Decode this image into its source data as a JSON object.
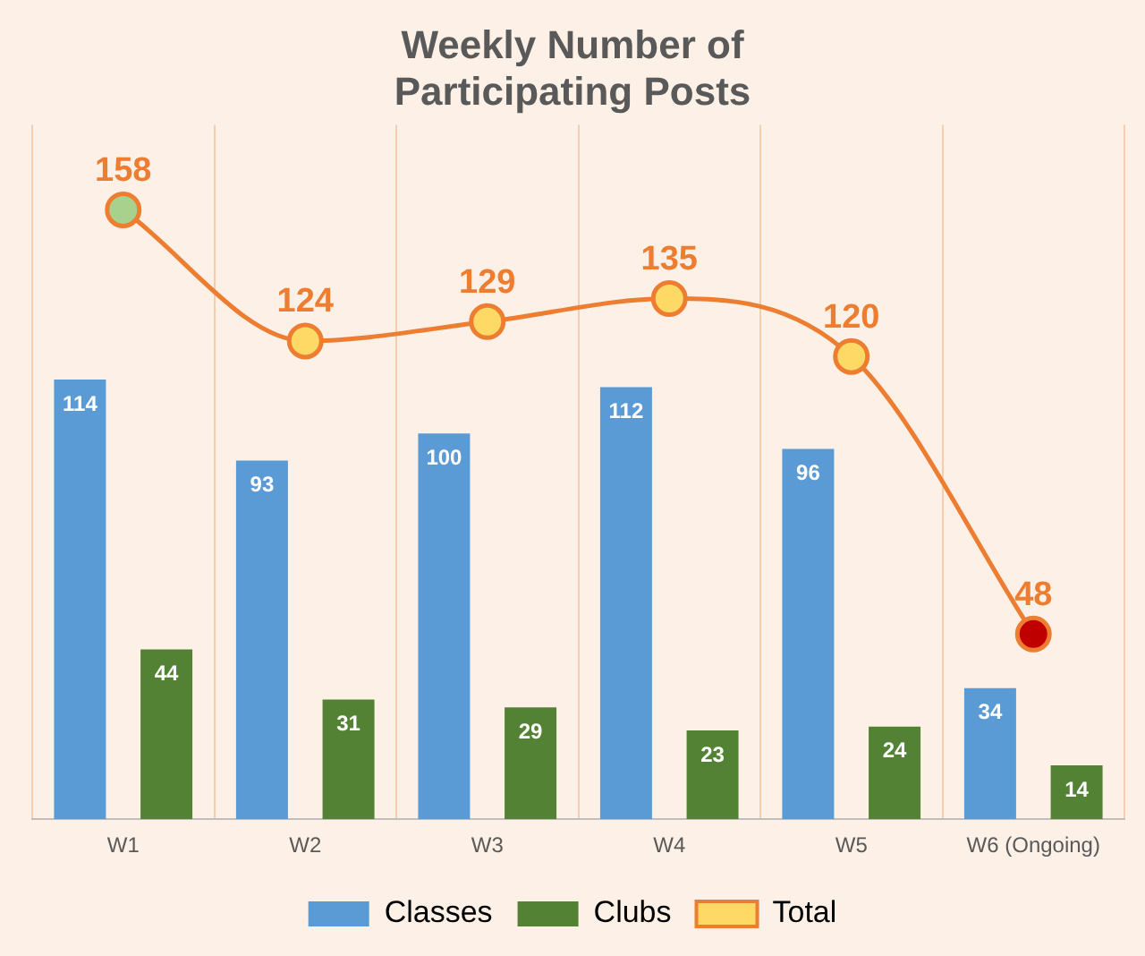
{
  "chart_data": {
    "type": "bar",
    "title": "Weekly Number of\nParticipating Posts",
    "categories": [
      "W1",
      "W2",
      "W3",
      "W4",
      "W5",
      "W6 (Ongoing)"
    ],
    "series": [
      {
        "name": "Classes",
        "color": "#5b9bd5",
        "values": [
          114,
          93,
          100,
          112,
          96,
          34
        ]
      },
      {
        "name": "Clubs",
        "color": "#548235",
        "values": [
          44,
          31,
          29,
          23,
          24,
          14
        ]
      },
      {
        "name": "Total",
        "type": "line",
        "color": "#ed7d31",
        "colors": [
          "#a9d18e",
          "#ffd966",
          "#ffd966",
          "#ffd966",
          "#ffd966",
          "#c00000"
        ],
        "values": [
          158,
          124,
          129,
          135,
          120,
          48
        ]
      }
    ],
    "data_labels": true,
    "grid": "x",
    "legend": "bottom",
    "tick_labels": "x",
    "marker": "circle"
  }
}
